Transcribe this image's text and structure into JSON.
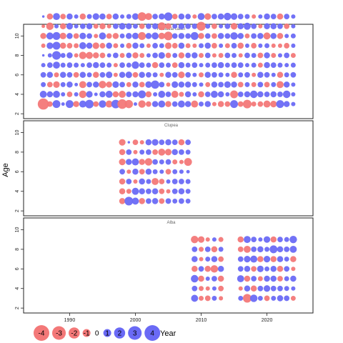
{
  "chart_data": {
    "type": "scatter",
    "subtype": "bubble-residuals",
    "xlabel": "Year",
    "ylabel": "Age",
    "xlim": [
      1983,
      2027
    ],
    "x_ticks": [
      1990,
      2000,
      2010,
      2020
    ],
    "colors": {
      "positive": "#6a6af5",
      "negative": "#f37878"
    },
    "panels": [
      {
        "title": "Residual catch",
        "ylim": [
          1.5,
          11.2
        ],
        "y_ticks": [
          2,
          4,
          6,
          8,
          10
        ],
        "years": [
          1986,
          2024
        ],
        "ages": [
          3,
          10
        ],
        "residuals": [
          [
            -2,
            -0.5,
            1.0,
            0.2,
            1.0,
            -0.6,
            0.8,
            1.2,
            -0.5,
            0.9,
            -0.8,
            1.2,
            -1.5,
            -1.1,
            0.2,
            -0.9,
            -0.5,
            0.6,
            0.8,
            -0.6,
            0.5,
            0.8,
            0.6,
            -0.8,
            0.4,
            0.6,
            -0.3,
            -0.6,
            -0.5,
            1.0,
            -0.5,
            -1.2,
            -0.4,
            -0.5,
            -0.8,
            -0.7,
            1.0,
            0.6,
            0.3
          ],
          [
            0.8,
            0.6,
            0.8,
            0.3,
            -0.5,
            0.3,
            -0.9,
            0.7,
            0.2,
            0.6,
            0.8,
            -0.6,
            -0.8,
            0.5,
            0.6,
            1.0,
            -0.6,
            0.3,
            0.8,
            0.5,
            -0.8,
            -0.4,
            0.6,
            0.3,
            -0.6,
            0.5,
            0.8,
            0.6,
            0.3,
            -1.0,
            0.5,
            0.6,
            0.9,
            0.6,
            0.5,
            0.6,
            0.5,
            0.9,
            0.3
          ],
          [
            0.4,
            -0.5,
            -0.7,
            0.4,
            0.6,
            0.2,
            -0.8,
            0.5,
            0.6,
            -0.9,
            -0.6,
            0.7,
            0.5,
            -0.4,
            0.6,
            -0.5,
            0.7,
            1.1,
            0.5,
            -0.3,
            0.7,
            0.6,
            0.6,
            0.4,
            0.3,
            -0.4,
            0.6,
            0.5,
            0.7,
            0.6,
            -0.5,
            0.4,
            -0.4,
            0.5,
            -0.5,
            0.4,
            -0.8,
            0.6,
            0.3
          ],
          [
            0.5,
            0.6,
            -0.4,
            0.6,
            0.5,
            -0.5,
            0.6,
            0.4,
            -0.6,
            0.5,
            0.7,
            -0.3,
            0.6,
            0.7,
            -0.5,
            0.6,
            0.5,
            0.4,
            -0.3,
            0.6,
            0.5,
            -0.7,
            0.5,
            0.3,
            -0.4,
            0.6,
            0.5,
            0.4,
            0.3,
            -0.6,
            0.4,
            0.5,
            -0.3,
            0.6,
            0.5,
            0.3,
            -0.6,
            0.4,
            0.5
          ],
          [
            0.3,
            0.5,
            0.8,
            0.4,
            0.5,
            0.4,
            0.3,
            0.5,
            0.6,
            0.5,
            0.4,
            -0.3,
            0.5,
            0.4,
            0.9,
            0.5,
            0.4,
            -0.6,
            0.5,
            0.4,
            -0.5,
            0.6,
            0.4,
            0.5,
            0.3,
            0.4,
            0.5,
            0.6,
            0.4,
            0.5,
            0.5,
            0.3,
            0.4,
            -0.4,
            0.6,
            0.5,
            0.4,
            0.3,
            0.4
          ],
          [
            0.1,
            0.3,
            1.2,
            0.4,
            0.6,
            -0.3,
            -0.9,
            -0.8,
            -0.6,
            -0.5,
            0.3,
            0.5,
            -0.4,
            0.5,
            -0.6,
            -0.4,
            0.3,
            0.5,
            0.7,
            -0.5,
            0.4,
            -0.6,
            0.5,
            0.6,
            -0.4,
            0.5,
            -0.3,
            -0.4,
            0.5,
            0.4,
            -0.3,
            0.5,
            0.4,
            -0.5,
            0.6,
            -0.4,
            0.3,
            0.5,
            -0.4
          ],
          [
            -0.3,
            0.7,
            1.0,
            -0.6,
            -0.5,
            -0.4,
            0.8,
            0.6,
            -0.7,
            -0.5,
            0.6,
            -0.4,
            0.3,
            -0.5,
            0.6,
            0.4,
            -0.3,
            0.5,
            0.4,
            -0.7,
            -0.5,
            0.6,
            -0.4,
            -0.3,
            0.4,
            0.6,
            -0.5,
            0.3,
            -0.4,
            0.5,
            -0.6,
            0.3,
            -0.5,
            0.3,
            0.4,
            -0.3,
            -0.3,
            -0.5,
            0.3
          ],
          [
            -0.6,
            0.8,
            1.0,
            -0.7,
            0.6,
            -0.5,
            0.7,
            0.5,
            -0.3,
            0.8,
            -0.5,
            -0.6,
            0.4,
            0.6,
            0.7,
            -1.0,
            0.6,
            0.8,
            -0.7,
            -1.2,
            0.5,
            0.6,
            0.5,
            1.0,
            -0.6,
            0.5,
            -0.5,
            0.6,
            0.5,
            0.9,
            0.6,
            -0.4,
            0.5,
            0.6,
            -0.8,
            0.6,
            -0.6,
            0.3,
            0.4
          ],
          [
            -0.2,
            -0.9,
            0.3,
            -0.6,
            0.7,
            0.3,
            0.5,
            0.6,
            -0.4,
            -0.6,
            -0.3,
            0.5,
            0.7,
            0.6,
            0.4,
            -0.5,
            0.5,
            0.6,
            -1.0,
            -0.6,
            0.4,
            0.6,
            0.5,
            0.5,
            -1.3,
            0.4,
            -0.5,
            0.3,
            0.5,
            -0.7,
            0.6,
            0.8,
            0.5,
            -0.3,
            0.6,
            0.6,
            0.5,
            -0.5,
            0.3
          ],
          [
            0.1,
            -0.6,
            0.8,
            -0.5,
            0.6,
            0.3,
            -0.6,
            0.4,
            0.7,
            0.6,
            -0.5,
            0.6,
            0.3,
            0.4,
            0.7,
            -1.2,
            -0.8,
            0.5,
            0.6,
            1.1,
            -0.5,
            0.6,
            0.5,
            -0.3,
            0.8,
            -0.7,
            0.5,
            0.6,
            0.9,
            0.7,
            0.5,
            0.4,
            -0.3,
            0.3,
            0.6,
            0.5,
            -0.6,
            0.5,
            0.3
          ]
        ]
      },
      {
        "title": "Clupea",
        "ylim": [
          1.5,
          11.2
        ],
        "y_ticks": [
          2,
          4,
          6,
          8,
          10
        ],
        "years": [
          1998,
          2008
        ],
        "ages": [
          3,
          9
        ],
        "residuals": [
          [
            -0.6,
            1.2,
            0.8,
            -0.6,
            0.5,
            0.6,
            -0.5,
            0.5,
            0.4,
            0.5,
            0.4
          ],
          [
            -0.6,
            -0.4,
            0.8,
            0.6,
            0.5,
            0.6,
            -0.5,
            -0.3,
            0.5,
            0.6,
            0.4
          ],
          [
            -0.6,
            0.5,
            -0.3,
            0.6,
            0.4,
            -0.8,
            -0.5,
            0.3,
            0.5,
            0.5,
            0.4
          ],
          [
            0.5,
            -0.3,
            0.6,
            -0.5,
            0.6,
            0.4,
            0.3,
            -0.5,
            0.4,
            0.3,
            0.2
          ],
          [
            -0.7,
            0.6,
            0.8,
            -0.6,
            -0.9,
            0.5,
            0.4,
            0.5,
            -0.4,
            -0.3,
            -1.0
          ],
          [
            -0.6,
            0.5,
            -0.3,
            0.4,
            0.5,
            -0.5,
            -0.8,
            -0.7,
            0.6,
            0.5,
            0.4
          ],
          [
            -0.7,
            0.1,
            -0.5,
            -0.3,
            0.6,
            0.7,
            0.5,
            0.6,
            0.5,
            -0.6,
            0.5
          ]
        ]
      },
      {
        "title": "Alba",
        "ylim": [
          1.5,
          11.2
        ],
        "y_ticks": [
          2,
          4,
          6,
          8,
          10
        ],
        "years": [
          2009,
          2024
        ],
        "ages": [
          3,
          9
        ],
        "skip_years": [
          2014,
          2015
        ],
        "residuals": [
          [
            0.8,
            -0.4,
            -0.5,
            0.4,
            -0.3,
            0,
            0,
            0.4,
            -1.2,
            0.9,
            0.4,
            -0.5,
            0.4,
            0.6,
            0.5,
            -0.4
          ],
          [
            0.5,
            -0.4,
            -0.3,
            0.3,
            -0.5,
            0,
            0,
            -0.3,
            0.6,
            -0.6,
            0.5,
            0.7,
            0.5,
            0.5,
            0.4,
            0.3
          ],
          [
            0.9,
            -0.6,
            0.3,
            0.5,
            -0.6,
            0,
            0,
            0.8,
            -0.6,
            0.5,
            -0.4,
            0.6,
            0.6,
            -0.5,
            0.4,
            0.6
          ],
          [
            -0.6,
            0.5,
            -0.6,
            -0.9,
            0.6,
            0,
            0,
            0.5,
            0.6,
            -0.5,
            0.7,
            0.4,
            0.6,
            -0.6,
            0.5,
            -0.3
          ],
          [
            0.6,
            -0.3,
            0.4,
            0.6,
            -0.5,
            0,
            0,
            0.5,
            0.7,
            0.8,
            -0.6,
            0.7,
            -0.6,
            0.6,
            0.4,
            -0.6
          ],
          [
            0.5,
            -0.4,
            0.5,
            -0.6,
            0.4,
            0,
            0,
            -0.5,
            -0.8,
            0.5,
            0.6,
            0.4,
            1.0,
            0.6,
            0.5,
            0.8
          ],
          [
            -0.9,
            -0.7,
            -0.3,
            0.3,
            -0.4,
            0,
            0,
            -0.6,
            0.8,
            0.5,
            0.3,
            0.7,
            -0.6,
            0.5,
            0.4,
            0.9
          ]
        ]
      }
    ],
    "legend": {
      "title": "Year",
      "values": [
        -4,
        -3,
        -2,
        -1,
        0,
        1,
        2,
        3,
        4
      ]
    }
  }
}
